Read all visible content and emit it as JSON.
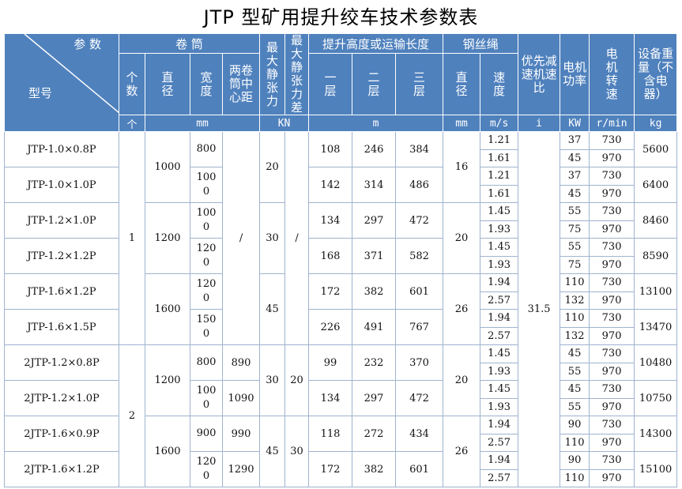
{
  "title": "JTP 型矿用提升绞车技术参数表",
  "header": {
    "param": "参 数",
    "model": "型号",
    "drum": "卷 筒",
    "count": "个数",
    "diameter": "直径",
    "width": "宽度",
    "center": "两卷筒中心距",
    "max_tension": "最大静张力",
    "max_diff": "最大静张力差",
    "lift": "提升高度或运输长度",
    "l1": "一层",
    "l2": "二层",
    "l3": "三层",
    "rope": "钢丝绳",
    "rope_dia": "直径",
    "rope_speed": "速度",
    "ratio": "优先减速机速比",
    "kw": "电机功率",
    "rpm": "电机转速",
    "weight": "设备重量（不含电器）",
    "u_count": "个",
    "u_mm": "mm",
    "u_kn": "KN",
    "u_m": "m",
    "u_mm2": "mm",
    "u_ms": "m/s",
    "u_i": "i",
    "u_kw": "KW",
    "u_rpm": "r/min",
    "u_kg": "kg"
  },
  "groups": {
    "count": [
      {
        "v": "1",
        "n": 6
      },
      {
        "v": "2",
        "n": 4
      }
    ],
    "diameter": [
      {
        "v": "1000",
        "n": 2
      },
      {
        "v": "1200",
        "n": 2
      },
      {
        "v": "1600",
        "n": 2
      },
      {
        "v": "1200",
        "n": 2
      },
      {
        "v": "1600",
        "n": 2
      }
    ],
    "center": [
      {
        "v": "/",
        "n": 6
      },
      {
        "v": "890",
        "n": 1
      },
      {
        "v": "1090",
        "n": 1
      },
      {
        "v": "990",
        "n": 1
      },
      {
        "v": "1290",
        "n": 1
      }
    ],
    "max_tension": [
      {
        "v": "20",
        "n": 2
      },
      {
        "v": "30",
        "n": 2
      },
      {
        "v": "45",
        "n": 2
      },
      {
        "v": "30",
        "n": 2
      },
      {
        "v": "45",
        "n": 2
      }
    ],
    "max_diff": [
      {
        "v": "/",
        "n": 6
      },
      {
        "v": "20",
        "n": 2
      },
      {
        "v": "30",
        "n": 2
      }
    ],
    "rope_dia": [
      {
        "v": "16",
        "n": 2
      },
      {
        "v": "20",
        "n": 2
      },
      {
        "v": "26",
        "n": 2
      },
      {
        "v": "20",
        "n": 2
      },
      {
        "v": "26",
        "n": 2
      }
    ],
    "ratio": [
      {
        "v": "31.5",
        "n": 10
      }
    ]
  },
  "models": [
    {
      "model": "JTP-1.0×0.8P",
      "width": "800",
      "h": [
        "108",
        "246",
        "384"
      ],
      "speed": [
        "1.21",
        "1.61"
      ],
      "kw": [
        "37",
        "45"
      ],
      "rpm": [
        "730",
        "970"
      ],
      "kg": "5600"
    },
    {
      "model": "JTP-1.0×1.0P",
      "width": "1000",
      "h": [
        "142",
        "314",
        "486"
      ],
      "speed": [
        "1.21",
        "1.61"
      ],
      "kw": [
        "37",
        "45"
      ],
      "rpm": [
        "730",
        "970"
      ],
      "kg": "6400"
    },
    {
      "model": "JTP-1.2×1.0P",
      "width": "1000",
      "h": [
        "134",
        "297",
        "472"
      ],
      "speed": [
        "1.45",
        "1.93"
      ],
      "kw": [
        "55",
        "75"
      ],
      "rpm": [
        "730",
        "970"
      ],
      "kg": "8460"
    },
    {
      "model": "JTP-1.2×1.2P",
      "width": "1200",
      "h": [
        "168",
        "371",
        "582"
      ],
      "speed": [
        "1.45",
        "1.93"
      ],
      "kw": [
        "55",
        "75"
      ],
      "rpm": [
        "730",
        "970"
      ],
      "kg": "8590"
    },
    {
      "model": "JTP-1.6×1.2P",
      "width": "1200",
      "h": [
        "172",
        "382",
        "601"
      ],
      "speed": [
        "1.94",
        "2.57"
      ],
      "kw": [
        "110",
        "132"
      ],
      "rpm": [
        "730",
        "970"
      ],
      "kg": "13100"
    },
    {
      "model": "JTP-1.6×1.5P",
      "width": "1500",
      "h": [
        "226",
        "491",
        "767"
      ],
      "speed": [
        "1.94",
        "2.57"
      ],
      "kw": [
        "110",
        "132"
      ],
      "rpm": [
        "730",
        "970"
      ],
      "kg": "13470"
    },
    {
      "model": "2JTP-1.2×0.8P",
      "width": "800",
      "h": [
        "99",
        "232",
        "370"
      ],
      "speed": [
        "1.45",
        "1.93"
      ],
      "kw": [
        "45",
        "55"
      ],
      "rpm": [
        "730",
        "970"
      ],
      "kg": "10480"
    },
    {
      "model": "2JTP-1.2×1.0P",
      "width": "1000",
      "h": [
        "134",
        "297",
        "472"
      ],
      "speed": [
        "1.45",
        "1.93"
      ],
      "kw": [
        "45",
        "55"
      ],
      "rpm": [
        "730",
        "970"
      ],
      "kg": "10750"
    },
    {
      "model": "2JTP-1.6×0.9P",
      "width": "900",
      "h": [
        "118",
        "272",
        "434"
      ],
      "speed": [
        "1.94",
        "2.57"
      ],
      "kw": [
        "90",
        "110"
      ],
      "rpm": [
        "730",
        "970"
      ],
      "kg": "14300"
    },
    {
      "model": "2JTP-1.6×1.2P",
      "width": "1200",
      "h": [
        "172",
        "382",
        "601"
      ],
      "speed": [
        "1.94",
        "2.57"
      ],
      "kw": [
        "90",
        "110"
      ],
      "rpm": [
        "730",
        "970"
      ],
      "kg": "15100"
    }
  ]
}
